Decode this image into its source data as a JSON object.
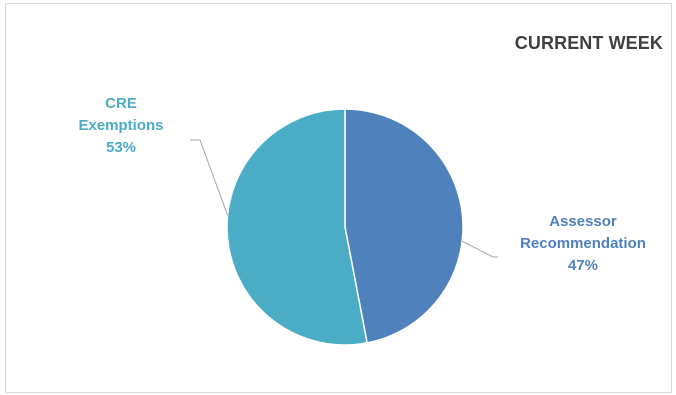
{
  "chart_data": {
    "type": "pie",
    "title": "CURRENT WEEK",
    "slices": [
      {
        "label_line1": "Assessor",
        "label_line2": "Recommendation",
        "value": 47,
        "value_label": "47%",
        "color": "#4f81bd"
      },
      {
        "label_line1": "CRE",
        "label_line2": "Exemptions",
        "value": 53,
        "value_label": "53%",
        "color": "#4bacc6"
      }
    ],
    "legend": "none",
    "leader_line_color": "#a6a6a6"
  }
}
